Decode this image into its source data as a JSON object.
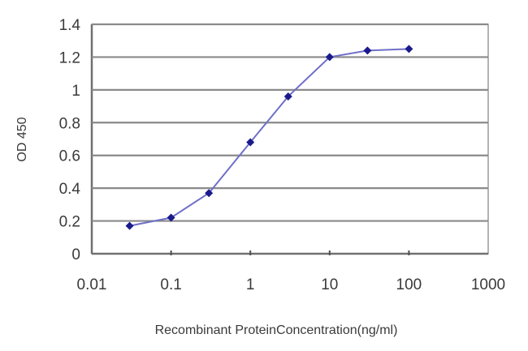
{
  "chart_data": {
    "type": "line",
    "title": "",
    "xlabel": "Recombinant ProteinConcentration(ng/ml)",
    "ylabel": "OD 450",
    "x_scale": "log",
    "xlim": [
      0.01,
      1000
    ],
    "ylim": [
      0,
      1.4
    ],
    "x_ticks": [
      "0.01",
      "0.1",
      "1",
      "10",
      "100",
      "1000"
    ],
    "y_ticks": [
      "0",
      "0.2",
      "0.4",
      "0.6",
      "0.8",
      "1",
      "1.2",
      "1.4"
    ],
    "grid": {
      "horizontal": true,
      "vertical": false
    },
    "legend": null,
    "series": [
      {
        "name": "OD 450",
        "color": "#1a1a8c",
        "line_color": "#6f6fc8",
        "marker": "diamond",
        "x": [
          0.03,
          0.1,
          0.3,
          1,
          3,
          10,
          30,
          100
        ],
        "values": [
          0.17,
          0.22,
          0.37,
          0.68,
          0.96,
          1.2,
          1.24,
          1.25
        ]
      }
    ]
  }
}
